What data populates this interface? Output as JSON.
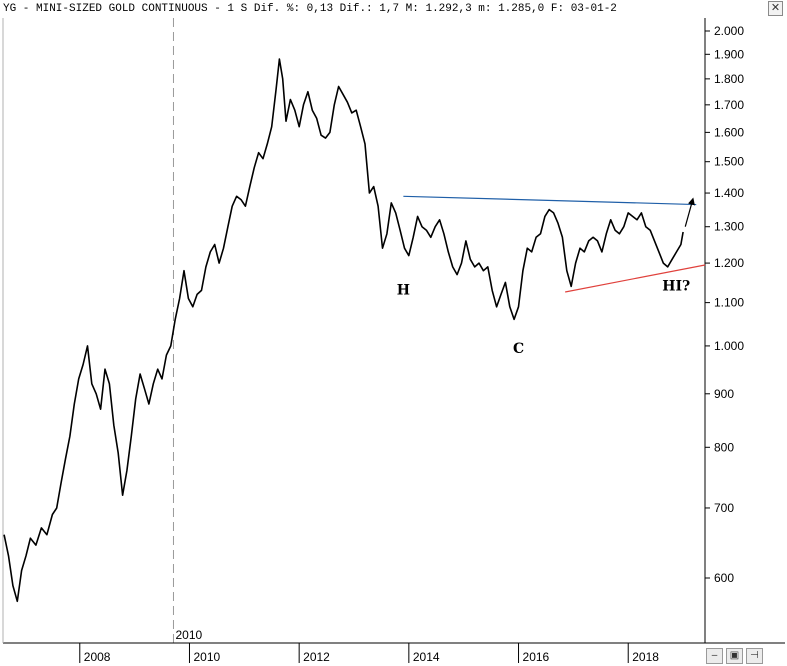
{
  "header": {
    "title": "YG - MINI-SIZED GOLD CONTINUOUS -  1 S Dif. %: 0,13 Dif.: 1,7 M: 1.292,3 m: 1.285,0 F: 03-01-2",
    "close_label": "✕"
  },
  "toolbar": {
    "icons": [
      "minus-icon",
      "save-icon",
      "pin-icon"
    ],
    "labels": [
      "–",
      "▣",
      "⊣"
    ]
  },
  "chart_data": {
    "type": "line",
    "title": "YG - MINI-SIZED GOLD CONTINUOUS",
    "y_scale": "log",
    "ylim": [
      530,
      2080
    ],
    "xlim": [
      2006.6,
      2019.4
    ],
    "y_ticks": [
      {
        "v": 2000,
        "label": "2.000"
      },
      {
        "v": 1900,
        "label": "1.900"
      },
      {
        "v": 1800,
        "label": "1.800"
      },
      {
        "v": 1700,
        "label": "1.700"
      },
      {
        "v": 1600,
        "label": "1.600"
      },
      {
        "v": 1500,
        "label": "1.500"
      },
      {
        "v": 1400,
        "label": "1.400"
      },
      {
        "v": 1300,
        "label": "1.300"
      },
      {
        "v": 1200,
        "label": "1.200"
      },
      {
        "v": 1100,
        "label": "1.100"
      },
      {
        "v": 1000,
        "label": "1.000"
      },
      {
        "v": 900,
        "label": "900"
      },
      {
        "v": 800,
        "label": "800"
      },
      {
        "v": 700,
        "label": "700"
      },
      {
        "v": 600,
        "label": "600"
      }
    ],
    "x_ticks": [
      {
        "v": 2008,
        "label": "2008"
      },
      {
        "v": 2010,
        "label": "2010"
      },
      {
        "v": 2012,
        "label": "2012"
      },
      {
        "v": 2014,
        "label": "2014"
      },
      {
        "v": 2016,
        "label": "2016"
      },
      {
        "v": 2018,
        "label": "2018"
      }
    ],
    "marker": {
      "x": 2010,
      "label": "2010"
    },
    "series": [
      {
        "color": "#000000",
        "points": [
          [
            2006.62,
            660
          ],
          [
            2006.7,
            630
          ],
          [
            2006.78,
            590
          ],
          [
            2006.86,
            570
          ],
          [
            2006.94,
            610
          ],
          [
            2007.02,
            630
          ],
          [
            2007.1,
            655
          ],
          [
            2007.2,
            645
          ],
          [
            2007.3,
            670
          ],
          [
            2007.4,
            660
          ],
          [
            2007.5,
            690
          ],
          [
            2007.58,
            700
          ],
          [
            2007.66,
            740
          ],
          [
            2007.74,
            780
          ],
          [
            2007.82,
            820
          ],
          [
            2007.9,
            880
          ],
          [
            2007.98,
            930
          ],
          [
            2008.06,
            960
          ],
          [
            2008.14,
            1000
          ],
          [
            2008.22,
            920
          ],
          [
            2008.3,
            900
          ],
          [
            2008.38,
            870
          ],
          [
            2008.46,
            950
          ],
          [
            2008.54,
            920
          ],
          [
            2008.62,
            840
          ],
          [
            2008.7,
            790
          ],
          [
            2008.78,
            720
          ],
          [
            2008.86,
            760
          ],
          [
            2008.94,
            820
          ],
          [
            2009.02,
            890
          ],
          [
            2009.1,
            940
          ],
          [
            2009.18,
            910
          ],
          [
            2009.26,
            880
          ],
          [
            2009.34,
            920
          ],
          [
            2009.42,
            950
          ],
          [
            2009.5,
            930
          ],
          [
            2009.58,
            980
          ],
          [
            2009.66,
            1000
          ],
          [
            2009.74,
            1060
          ],
          [
            2009.82,
            1110
          ],
          [
            2009.9,
            1180
          ],
          [
            2009.98,
            1110
          ],
          [
            2010.06,
            1090
          ],
          [
            2010.14,
            1120
          ],
          [
            2010.22,
            1130
          ],
          [
            2010.3,
            1190
          ],
          [
            2010.38,
            1230
          ],
          [
            2010.46,
            1250
          ],
          [
            2010.54,
            1200
          ],
          [
            2010.62,
            1240
          ],
          [
            2010.7,
            1300
          ],
          [
            2010.78,
            1360
          ],
          [
            2010.86,
            1390
          ],
          [
            2010.94,
            1380
          ],
          [
            2011.02,
            1360
          ],
          [
            2011.1,
            1420
          ],
          [
            2011.18,
            1480
          ],
          [
            2011.26,
            1530
          ],
          [
            2011.34,
            1510
          ],
          [
            2011.42,
            1560
          ],
          [
            2011.5,
            1620
          ],
          [
            2011.58,
            1760
          ],
          [
            2011.64,
            1880
          ],
          [
            2011.7,
            1800
          ],
          [
            2011.76,
            1640
          ],
          [
            2011.84,
            1720
          ],
          [
            2011.92,
            1680
          ],
          [
            2012.0,
            1620
          ],
          [
            2012.08,
            1700
          ],
          [
            2012.16,
            1750
          ],
          [
            2012.24,
            1680
          ],
          [
            2012.32,
            1650
          ],
          [
            2012.4,
            1590
          ],
          [
            2012.48,
            1580
          ],
          [
            2012.56,
            1600
          ],
          [
            2012.64,
            1700
          ],
          [
            2012.72,
            1770
          ],
          [
            2012.8,
            1740
          ],
          [
            2012.88,
            1710
          ],
          [
            2012.96,
            1670
          ],
          [
            2013.04,
            1680
          ],
          [
            2013.12,
            1620
          ],
          [
            2013.2,
            1560
          ],
          [
            2013.28,
            1400
          ],
          [
            2013.36,
            1420
          ],
          [
            2013.44,
            1360
          ],
          [
            2013.52,
            1240
          ],
          [
            2013.6,
            1280
          ],
          [
            2013.68,
            1370
          ],
          [
            2013.76,
            1340
          ],
          [
            2013.84,
            1290
          ],
          [
            2013.92,
            1240
          ],
          [
            2014.0,
            1220
          ],
          [
            2014.08,
            1270
          ],
          [
            2014.16,
            1330
          ],
          [
            2014.24,
            1300
          ],
          [
            2014.32,
            1290
          ],
          [
            2014.4,
            1270
          ],
          [
            2014.48,
            1300
          ],
          [
            2014.56,
            1320
          ],
          [
            2014.64,
            1280
          ],
          [
            2014.72,
            1230
          ],
          [
            2014.8,
            1190
          ],
          [
            2014.88,
            1170
          ],
          [
            2014.96,
            1200
          ],
          [
            2015.04,
            1260
          ],
          [
            2015.12,
            1210
          ],
          [
            2015.2,
            1190
          ],
          [
            2015.28,
            1200
          ],
          [
            2015.36,
            1180
          ],
          [
            2015.44,
            1190
          ],
          [
            2015.52,
            1130
          ],
          [
            2015.6,
            1090
          ],
          [
            2015.68,
            1120
          ],
          [
            2015.76,
            1150
          ],
          [
            2015.84,
            1090
          ],
          [
            2015.92,
            1060
          ],
          [
            2016.0,
            1090
          ],
          [
            2016.08,
            1180
          ],
          [
            2016.16,
            1240
          ],
          [
            2016.24,
            1230
          ],
          [
            2016.32,
            1270
          ],
          [
            2016.4,
            1280
          ],
          [
            2016.48,
            1330
          ],
          [
            2016.56,
            1350
          ],
          [
            2016.64,
            1340
          ],
          [
            2016.72,
            1310
          ],
          [
            2016.8,
            1270
          ],
          [
            2016.88,
            1180
          ],
          [
            2016.96,
            1140
          ],
          [
            2017.04,
            1200
          ],
          [
            2017.12,
            1240
          ],
          [
            2017.2,
            1230
          ],
          [
            2017.28,
            1260
          ],
          [
            2017.36,
            1270
          ],
          [
            2017.44,
            1260
          ],
          [
            2017.52,
            1230
          ],
          [
            2017.6,
            1280
          ],
          [
            2017.68,
            1320
          ],
          [
            2017.76,
            1290
          ],
          [
            2017.84,
            1280
          ],
          [
            2017.92,
            1300
          ],
          [
            2018.0,
            1340
          ],
          [
            2018.08,
            1330
          ],
          [
            2018.16,
            1320
          ],
          [
            2018.24,
            1340
          ],
          [
            2018.32,
            1300
          ],
          [
            2018.4,
            1290
          ],
          [
            2018.48,
            1260
          ],
          [
            2018.56,
            1230
          ],
          [
            2018.64,
            1200
          ],
          [
            2018.72,
            1190
          ],
          [
            2018.8,
            1210
          ],
          [
            2018.88,
            1230
          ],
          [
            2018.96,
            1250
          ],
          [
            2019.0,
            1285
          ]
        ]
      }
    ],
    "lines": [
      {
        "color": "#1f5fa8",
        "from": [
          2013.9,
          1390
        ],
        "to": [
          2019.24,
          1365
        ]
      },
      {
        "color": "#e0413c",
        "from": [
          2016.85,
          1126
        ],
        "to": [
          2019.4,
          1195
        ]
      },
      {
        "color": "#000000",
        "arrow": true,
        "from": [
          2019.04,
          1300
        ],
        "to": [
          2019.18,
          1382
        ]
      }
    ],
    "annotations": [
      {
        "text": "H",
        "x": 2013.78,
        "y": 1120
      },
      {
        "text": "C",
        "x": 2015.9,
        "y": 985
      },
      {
        "text": "HI?",
        "x": 2018.62,
        "y": 1130
      }
    ]
  }
}
